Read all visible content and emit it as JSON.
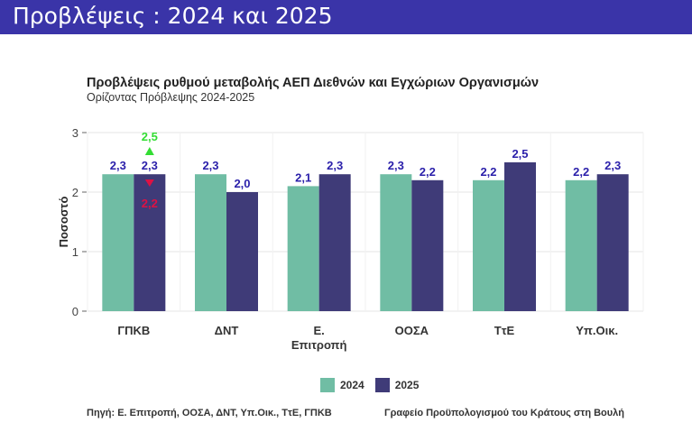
{
  "header": {
    "title": "Προβλέψεις : 2024 και 2025"
  },
  "colors": {
    "banner": "#3a34a8",
    "s2024": "#70bda4",
    "s2025": "#3f3b78",
    "label": "#2a1faa",
    "up": "#33dd33",
    "down": "#dd1144"
  },
  "chart_data": {
    "type": "bar",
    "title": "Προβλέψεις ρυθμού μεταβολής ΑΕΠ Διεθνών και Εγχώριων Οργανισμών",
    "subtitle": "Ορίζοντας Πρόβλεψης 2024-2025",
    "ylabel": "Ποσοστό",
    "xlabel": "",
    "ylim": [
      0,
      3
    ],
    "yticks": [
      "0",
      "1",
      "2",
      "3"
    ],
    "categories": [
      "ΓΠΚΒ",
      "ΔΝΤ",
      "Ε. Επιτροπή",
      "ΟΟΣΑ",
      "ΤτΕ",
      "Υπ.Οικ."
    ],
    "category_lines": [
      [
        "ΓΠΚΒ"
      ],
      [
        "ΔΝΤ"
      ],
      [
        "Ε.",
        "Επιτροπή"
      ],
      [
        "ΟΟΣΑ"
      ],
      [
        "ΤτΕ"
      ],
      [
        "Υπ.Οικ."
      ]
    ],
    "series": [
      {
        "name": "2024",
        "values": [
          2.3,
          2.3,
          2.1,
          2.3,
          2.2,
          2.2
        ],
        "labels": [
          "2,3",
          "2,3",
          "2,1",
          "2,3",
          "2,2",
          "2,2"
        ]
      },
      {
        "name": "2025",
        "values": [
          2.3,
          2.0,
          2.3,
          2.2,
          2.5,
          2.3
        ],
        "labels": [
          "2,3",
          "2,0",
          "2,3",
          "2,2",
          "2,5",
          "2,3"
        ]
      }
    ],
    "annotations": [
      {
        "category": "ΓΠΚΒ",
        "series": "2025",
        "kind": "upper",
        "value": 2.5,
        "label": "2,5"
      },
      {
        "category": "ΓΠΚΒ",
        "series": "2025",
        "kind": "lower",
        "value": 2.2,
        "label": "2,2"
      }
    ],
    "legend": [
      "2024",
      "2025"
    ],
    "legend_position": "bottom"
  },
  "footer": {
    "source": "Πηγή:  Ε. Επιτροπή, ΟΟΣΑ, ΔΝΤ, Υπ.Οικ., ΤτΕ, ΓΠΚΒ",
    "office": "Γραφείο Προϋπολογισμού του Κράτους στη Βουλή"
  }
}
